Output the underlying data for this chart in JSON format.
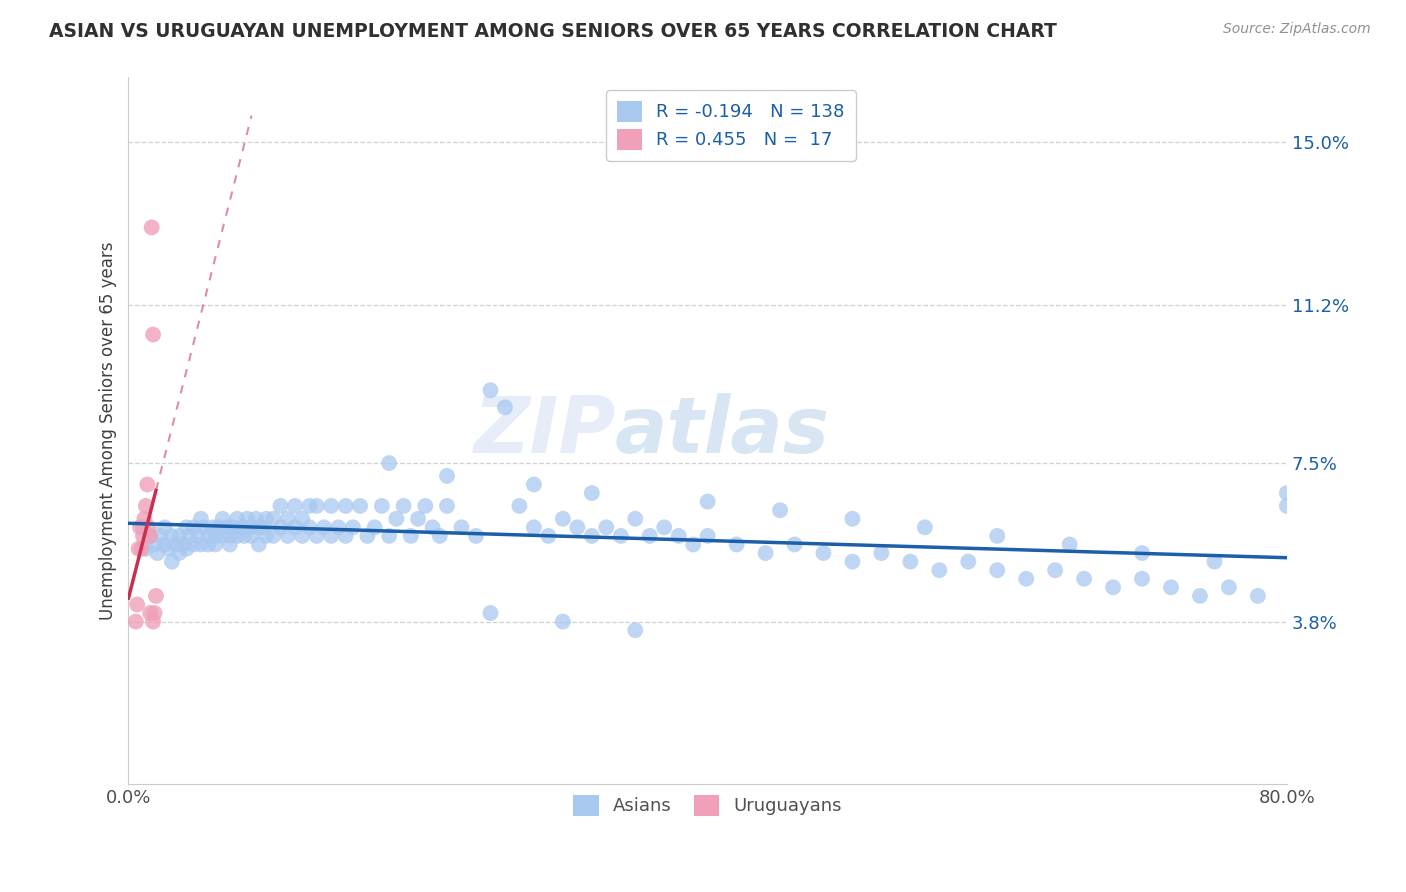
{
  "title": "ASIAN VS URUGUAYAN UNEMPLOYMENT AMONG SENIORS OVER 65 YEARS CORRELATION CHART",
  "source": "Source: ZipAtlas.com",
  "ylabel": "Unemployment Among Seniors over 65 years",
  "y_tick_labels_right": [
    "15.0%",
    "11.2%",
    "7.5%",
    "3.8%"
  ],
  "y_tick_positions_right": [
    0.15,
    0.112,
    0.075,
    0.038
  ],
  "xlim": [
    0.0,
    0.8
  ],
  "ylim": [
    0.0,
    0.165
  ],
  "legend_r1": "R = -0.194",
  "legend_n1": "N = 138",
  "legend_r2": "R = 0.455",
  "legend_n2": "N =  17",
  "legend_label1": "Asians",
  "legend_label2": "Uruguayans",
  "blue_color": "#a8c8f0",
  "pink_color": "#f0a0b8",
  "blue_line_color": "#1a5fa8",
  "pink_line_color": "#c83050",
  "title_color": "#303030",
  "source_color": "#909090",
  "watermark_zip": "ZIP",
  "watermark_atlas": "atlas",
  "grid_color": "#d0d0d0",
  "asian_x": [
    0.01,
    0.012,
    0.015,
    0.018,
    0.02,
    0.022,
    0.025,
    0.025,
    0.028,
    0.03,
    0.03,
    0.033,
    0.035,
    0.035,
    0.038,
    0.04,
    0.04,
    0.042,
    0.045,
    0.045,
    0.048,
    0.05,
    0.05,
    0.052,
    0.055,
    0.055,
    0.058,
    0.06,
    0.06,
    0.062,
    0.065,
    0.065,
    0.068,
    0.07,
    0.07,
    0.072,
    0.075,
    0.075,
    0.078,
    0.08,
    0.08,
    0.082,
    0.085,
    0.085,
    0.088,
    0.09,
    0.09,
    0.092,
    0.095,
    0.095,
    0.1,
    0.1,
    0.105,
    0.105,
    0.11,
    0.11,
    0.115,
    0.115,
    0.12,
    0.12,
    0.125,
    0.125,
    0.13,
    0.13,
    0.135,
    0.14,
    0.14,
    0.145,
    0.15,
    0.15,
    0.155,
    0.16,
    0.165,
    0.17,
    0.175,
    0.18,
    0.185,
    0.19,
    0.195,
    0.2,
    0.205,
    0.21,
    0.215,
    0.22,
    0.23,
    0.24,
    0.25,
    0.26,
    0.27,
    0.28,
    0.29,
    0.3,
    0.31,
    0.32,
    0.33,
    0.34,
    0.35,
    0.36,
    0.37,
    0.38,
    0.39,
    0.4,
    0.42,
    0.44,
    0.46,
    0.48,
    0.5,
    0.52,
    0.54,
    0.56,
    0.58,
    0.6,
    0.62,
    0.64,
    0.66,
    0.68,
    0.7,
    0.72,
    0.74,
    0.76,
    0.78,
    0.8,
    0.25,
    0.3,
    0.35,
    0.18,
    0.22,
    0.28,
    0.32,
    0.4,
    0.45,
    0.5,
    0.55,
    0.6,
    0.65,
    0.7,
    0.75,
    0.8
  ],
  "asian_y": [
    0.06,
    0.055,
    0.058,
    0.056,
    0.054,
    0.058,
    0.056,
    0.06,
    0.055,
    0.058,
    0.052,
    0.056,
    0.054,
    0.058,
    0.056,
    0.055,
    0.06,
    0.058,
    0.056,
    0.06,
    0.058,
    0.056,
    0.062,
    0.06,
    0.058,
    0.056,
    0.06,
    0.058,
    0.056,
    0.06,
    0.062,
    0.058,
    0.06,
    0.058,
    0.056,
    0.06,
    0.058,
    0.062,
    0.06,
    0.058,
    0.06,
    0.062,
    0.06,
    0.058,
    0.062,
    0.06,
    0.056,
    0.06,
    0.058,
    0.062,
    0.062,
    0.058,
    0.065,
    0.06,
    0.062,
    0.058,
    0.06,
    0.065,
    0.062,
    0.058,
    0.065,
    0.06,
    0.058,
    0.065,
    0.06,
    0.065,
    0.058,
    0.06,
    0.065,
    0.058,
    0.06,
    0.065,
    0.058,
    0.06,
    0.065,
    0.058,
    0.062,
    0.065,
    0.058,
    0.062,
    0.065,
    0.06,
    0.058,
    0.065,
    0.06,
    0.058,
    0.092,
    0.088,
    0.065,
    0.06,
    0.058,
    0.062,
    0.06,
    0.058,
    0.06,
    0.058,
    0.062,
    0.058,
    0.06,
    0.058,
    0.056,
    0.058,
    0.056,
    0.054,
    0.056,
    0.054,
    0.052,
    0.054,
    0.052,
    0.05,
    0.052,
    0.05,
    0.048,
    0.05,
    0.048,
    0.046,
    0.048,
    0.046,
    0.044,
    0.046,
    0.044,
    0.068,
    0.04,
    0.038,
    0.036,
    0.075,
    0.072,
    0.07,
    0.068,
    0.066,
    0.064,
    0.062,
    0.06,
    0.058,
    0.056,
    0.054,
    0.052,
    0.065
  ],
  "uruguayan_x": [
    0.005,
    0.006,
    0.007,
    0.008,
    0.009,
    0.01,
    0.011,
    0.012,
    0.013,
    0.014,
    0.015,
    0.015,
    0.016,
    0.017,
    0.017,
    0.018,
    0.019
  ],
  "uruguayan_y": [
    0.038,
    0.042,
    0.055,
    0.06,
    0.055,
    0.058,
    0.062,
    0.065,
    0.07,
    0.06,
    0.058,
    0.04,
    0.13,
    0.105,
    0.038,
    0.04,
    0.044
  ]
}
